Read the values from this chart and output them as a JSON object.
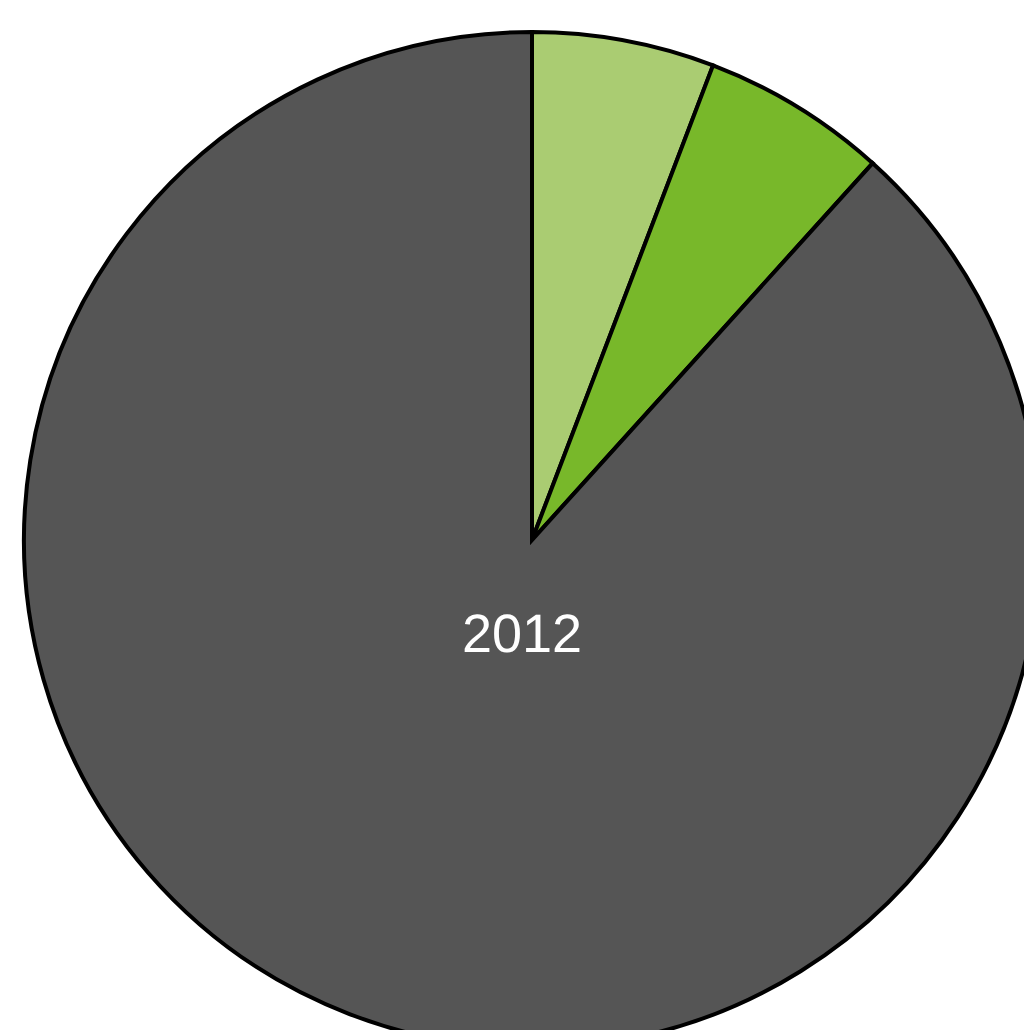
{
  "chart_data": {
    "type": "pie",
    "title": "2012",
    "categories": [
      null,
      null,
      null
    ],
    "values": [
      5.8,
      5.9,
      88.3
    ],
    "colors": [
      "#aacc72",
      "#78b82a",
      "#555555"
    ],
    "legend": false
  }
}
